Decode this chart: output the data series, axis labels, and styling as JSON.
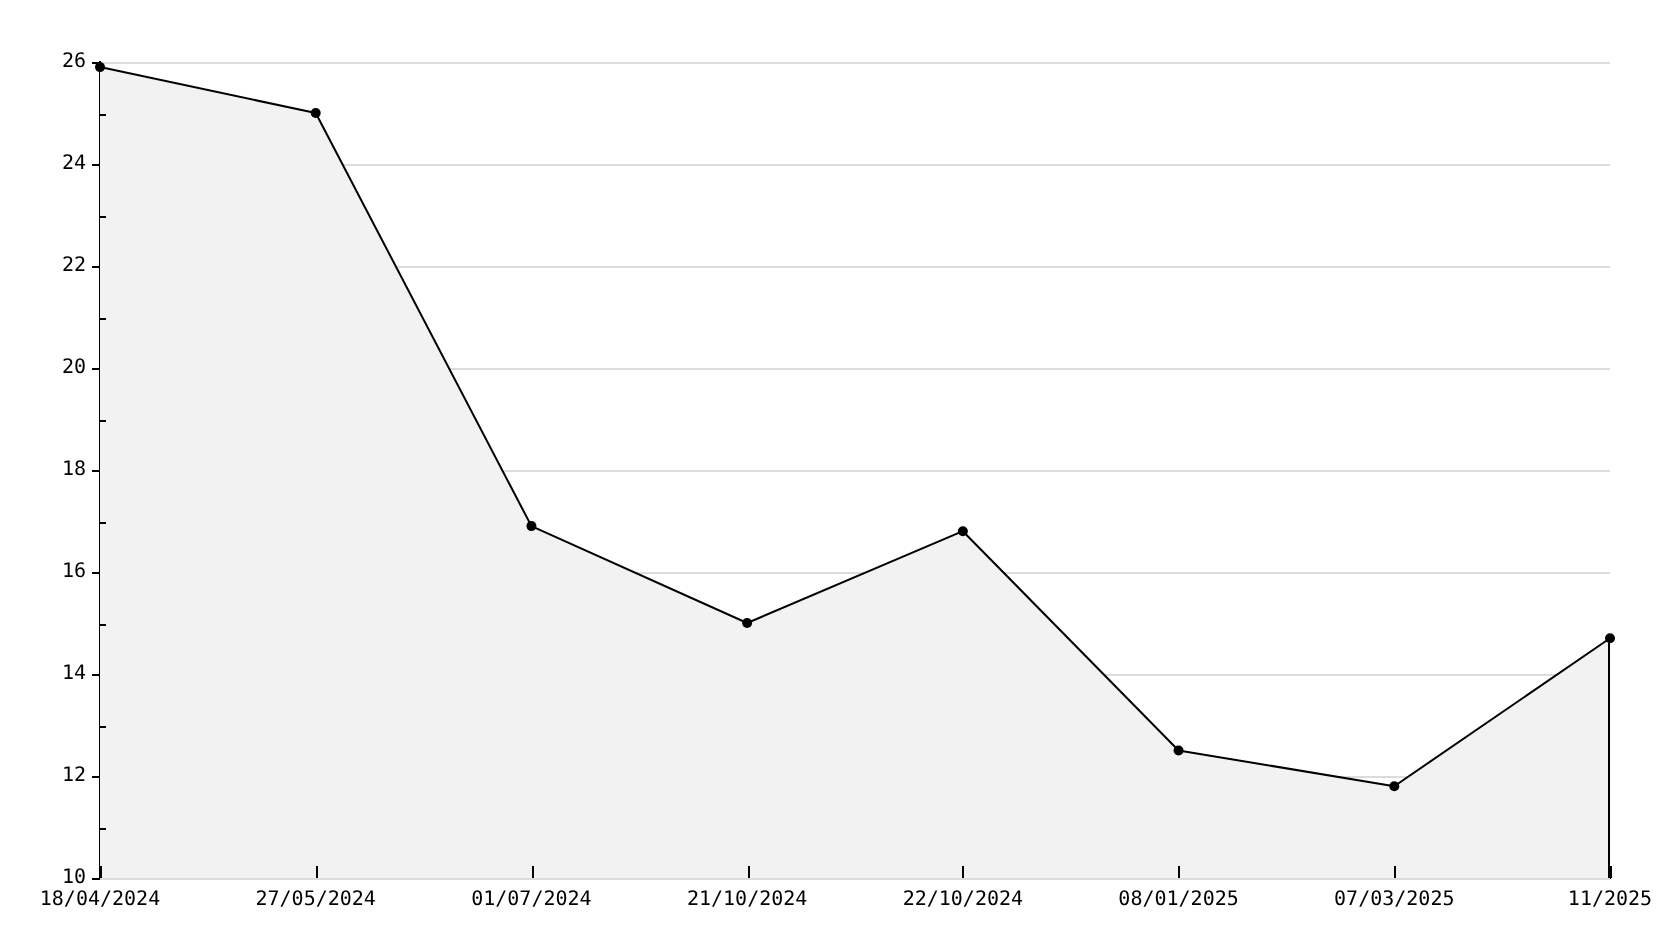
{
  "chart_data": {
    "type": "area",
    "categories": [
      "18/04/2024",
      "27/05/2024",
      "01/07/2024",
      "21/10/2024",
      "22/10/2024",
      "08/01/2025",
      "07/03/2025",
      "11/2025"
    ],
    "series": [
      {
        "color": "#000000",
        "values": [
          25.9,
          25.0,
          16.9,
          15.0,
          16.8,
          12.5,
          11.8,
          14.7
        ]
      }
    ],
    "ylim": [
      10,
      26
    ],
    "yticks": [
      10,
      {
        "value": 11,
        "label": null
      },
      12,
      {
        "value": 13,
        "label": null
      },
      14,
      {
        "value": 15,
        "label": null
      },
      16,
      {
        "value": 17,
        "label": null
      },
      18,
      {
        "value": 19,
        "label": null
      },
      20,
      {
        "value": 21,
        "label": null
      },
      22,
      {
        "value": 23,
        "label": null
      },
      24,
      {
        "value": 25,
        "label": null
      },
      26
    ],
    "grid": "y",
    "marker": "circle",
    "legend": false
  }
}
